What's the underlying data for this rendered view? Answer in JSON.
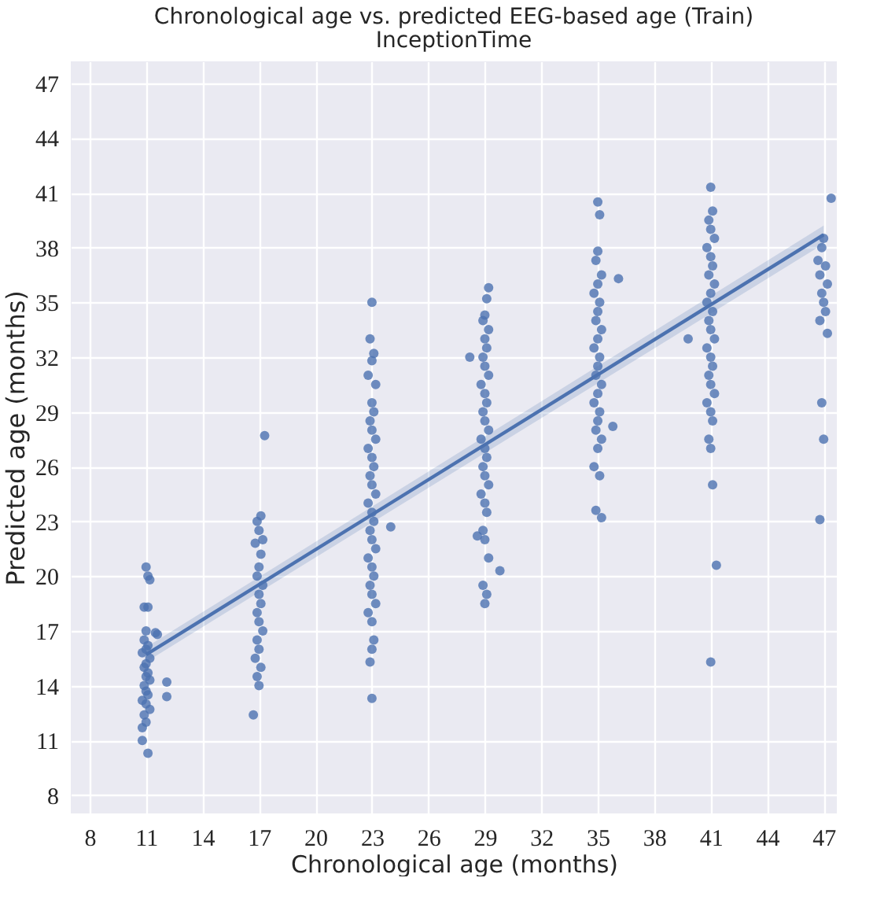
{
  "chart_data": {
    "type": "scatter",
    "title": "Chronological age vs. predicted EEG-based age (Train)",
    "subtitle": "InceptionTime",
    "xlabel": "Chronological age (months)",
    "ylabel": "Predicted age (months)",
    "xlim": [
      7,
      47.7
    ],
    "ylim": [
      7,
      48.2
    ],
    "xticks": [
      8,
      11,
      14,
      17,
      20,
      23,
      26,
      29,
      32,
      35,
      38,
      41,
      44,
      47
    ],
    "yticks": [
      8,
      11,
      14,
      17,
      20,
      23,
      26,
      29,
      32,
      35,
      38,
      41,
      44,
      47
    ],
    "grid": true,
    "series": [
      {
        "marker": "circle",
        "color": "#4c72b0",
        "x": [
          11,
          11.1,
          11.2,
          10.9,
          11.1,
          11,
          11.6,
          10.9,
          11.1,
          11,
          10.8,
          11.2,
          11,
          10.9,
          11.1,
          11,
          11.2,
          10.9,
          11,
          11.1,
          10.8,
          11,
          11.2,
          10.9,
          11,
          10.8,
          10.8,
          11.1,
          12.1,
          12.1,
          11.5,
          17.3,
          17.1,
          16.9,
          17,
          17.2,
          16.8,
          17.1,
          17,
          16.9,
          17.2,
          17,
          17.1,
          16.9,
          17,
          17.2,
          16.9,
          17,
          16.8,
          17.1,
          16.9,
          17,
          16.7,
          23,
          22.9,
          23.1,
          23,
          22.8,
          23.2,
          23,
          23.1,
          22.9,
          23,
          23.2,
          22.8,
          23,
          23.1,
          22.9,
          23,
          23.2,
          22.8,
          23,
          23.1,
          24,
          22.9,
          23,
          23.2,
          22.8,
          23,
          23.1,
          22.9,
          23,
          23.2,
          22.8,
          23,
          23.1,
          23,
          22.9,
          23,
          29.2,
          29.1,
          29,
          28.9,
          29.2,
          29,
          29.1,
          28.2,
          28.9,
          29,
          29.2,
          28.8,
          29,
          29.1,
          28.9,
          29,
          29.2,
          28.8,
          29,
          29.1,
          28.9,
          29,
          29.2,
          28.8,
          29,
          29.1,
          28.9,
          28.6,
          29,
          29.2,
          29.8,
          28.9,
          29.1,
          29,
          35,
          35.1,
          35,
          34.9,
          35.2,
          35,
          34.8,
          35.1,
          35,
          34.9,
          35.2,
          35,
          34.8,
          35.1,
          35,
          34.9,
          35.2,
          35,
          34.8,
          35.1,
          35,
          34.9,
          35.2,
          35,
          34.8,
          35.1,
          34.9,
          35.2,
          36.1,
          35.8,
          41,
          41.1,
          40.9,
          41,
          41.2,
          40.8,
          41,
          41.1,
          40.9,
          41.2,
          41,
          40.8,
          41.1,
          40.9,
          41,
          41.2,
          40.8,
          41,
          41.1,
          40.9,
          41,
          41.2,
          40.8,
          41,
          41.1,
          40.9,
          41,
          41.1,
          41.3,
          41,
          39.8,
          47.4,
          47,
          46.9,
          46.7,
          47.1,
          46.8,
          47.2,
          46.9,
          47,
          47.1,
          46.8,
          47.2,
          46.9,
          47,
          46.8
        ],
        "values": [
          20.5,
          20.0,
          19.8,
          18.3,
          18.3,
          17.0,
          16.8,
          16.5,
          16.2,
          16.0,
          15.8,
          15.5,
          15.2,
          15.0,
          14.7,
          14.5,
          14.3,
          14.0,
          13.7,
          13.5,
          13.2,
          13.0,
          12.7,
          12.4,
          12.0,
          11.7,
          11.0,
          10.3,
          14.2,
          13.4,
          16.9,
          27.7,
          23.3,
          23.0,
          22.5,
          22.0,
          21.8,
          21.2,
          20.5,
          20.0,
          19.5,
          19.0,
          18.5,
          18.0,
          17.5,
          17.0,
          16.5,
          16.0,
          15.5,
          15.0,
          14.5,
          14.0,
          12.4,
          35.0,
          33.0,
          32.2,
          31.8,
          31.0,
          30.5,
          29.5,
          29.0,
          28.5,
          28.0,
          27.5,
          27.0,
          26.5,
          26.0,
          25.5,
          25.0,
          24.5,
          24.0,
          23.5,
          23.0,
          22.7,
          22.5,
          22.0,
          21.5,
          21.0,
          20.5,
          20.0,
          19.5,
          19.0,
          18.5,
          18.0,
          17.5,
          16.5,
          16.0,
          15.3,
          13.3,
          35.8,
          35.2,
          34.3,
          34.0,
          33.5,
          33.0,
          32.5,
          32.0,
          32.0,
          31.5,
          31.0,
          30.5,
          30.0,
          29.5,
          29.0,
          28.5,
          28.0,
          27.5,
          27.0,
          26.5,
          26.0,
          25.5,
          25.0,
          24.5,
          24.0,
          23.5,
          22.5,
          22.2,
          22.0,
          21.0,
          20.3,
          19.5,
          19.0,
          18.5,
          40.5,
          39.8,
          37.8,
          37.3,
          36.5,
          36.0,
          35.5,
          35.0,
          34.5,
          34.0,
          33.5,
          33.0,
          32.5,
          32.0,
          31.5,
          31.0,
          30.5,
          30.0,
          29.5,
          29.0,
          28.5,
          28.0,
          27.5,
          27.0,
          26.0,
          25.5,
          23.6,
          23.2,
          36.3,
          28.2,
          41.3,
          40.0,
          39.5,
          39.0,
          38.5,
          38.0,
          37.5,
          37.0,
          36.5,
          36.0,
          35.5,
          35.0,
          34.5,
          34.0,
          33.5,
          33.0,
          32.5,
          32.0,
          31.5,
          31.0,
          30.5,
          30.0,
          29.5,
          29.0,
          28.5,
          27.5,
          27.0,
          25.0,
          20.6,
          15.3,
          33.0,
          40.7,
          38.5,
          38.0,
          37.3,
          37.0,
          36.5,
          36.0,
          35.5,
          35.0,
          34.5,
          34.0,
          33.3,
          29.5,
          27.5,
          23.1
        ]
      },
      {
        "type": "line",
        "color": "#4c72b0",
        "x": [
          11,
          47
        ],
        "values": [
          15.7,
          38.7
        ],
        "lower": [
          15.3,
          38.2
        ],
        "upper": [
          16.1,
          39.2
        ]
      }
    ]
  }
}
